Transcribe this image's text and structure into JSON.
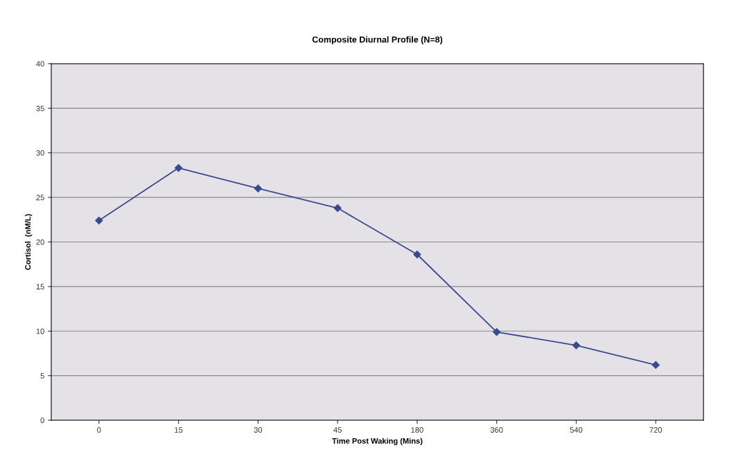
{
  "chart_data": {
    "type": "line",
    "title": "Composite Diurnal Profile (N=8)",
    "xlabel": "Time Post Waking (Mins)",
    "ylabel": "Cortisol  (nM/L)",
    "categories": [
      "0",
      "15",
      "30",
      "45",
      "180",
      "360",
      "540",
      "720"
    ],
    "series": [
      {
        "color": "#3b4a8c",
        "values": [
          22.4,
          28.3,
          26.0,
          23.8,
          18.6,
          9.9,
          8.4,
          6.2
        ]
      }
    ],
    "ylim": [
      0,
      40
    ],
    "yticks": [
      0,
      5,
      10,
      15,
      20,
      25,
      30,
      35,
      40
    ],
    "grid": "y",
    "marker": "diamond",
    "line_style": "solid",
    "legend": false
  }
}
